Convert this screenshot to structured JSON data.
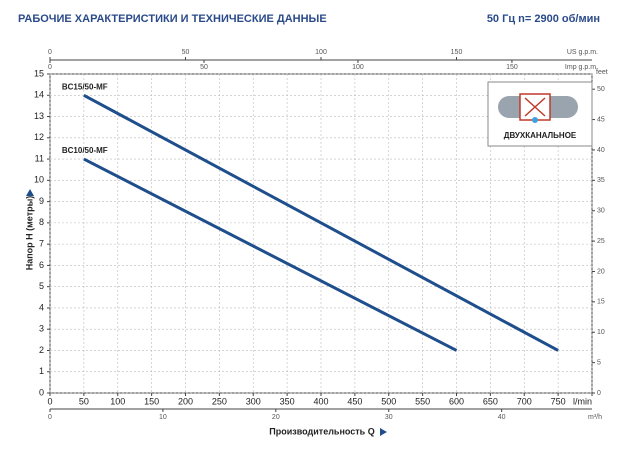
{
  "chart_data": {
    "type": "line",
    "title": "РАБОЧИЕ ХАРАКТЕРИСТИКИ И ТЕХНИЧЕСКИЕ ДАННЫЕ",
    "subtitle": "50 Гц   n= 2900 об/мин",
    "xlabel": "Производительность Q",
    "ylabel": "Напор H (метры)",
    "annotation": "ДВУХКАНАЛЬНОЕ",
    "xlim": [
      0,
      800
    ],
    "xticks": [
      0,
      50,
      100,
      150,
      200,
      250,
      300,
      350,
      400,
      450,
      500,
      550,
      600,
      650,
      700,
      750,
      {
        "value": 800,
        "label": "l/min"
      }
    ],
    "ylim": [
      0,
      15
    ],
    "yticks": [
      0,
      1,
      2,
      3,
      4,
      5,
      6,
      7,
      8,
      9,
      10,
      11,
      12,
      13,
      14,
      15
    ],
    "y2label": "feet",
    "y2lim": [
      0,
      52.5
    ],
    "y2ticks": [
      0,
      5,
      10,
      15,
      20,
      25,
      30,
      35,
      40,
      45,
      50
    ],
    "top_axes": [
      {
        "label": "US g.p.m.",
        "lim": [
          0,
          200
        ],
        "ticks": [
          0,
          50,
          100,
          150
        ]
      },
      {
        "label": "Imp g.p.m.",
        "lim": [
          0,
          176
        ],
        "ticks": [
          0,
          50,
          100,
          150
        ]
      }
    ],
    "bottom_axis": {
      "label": "m³/h",
      "lim": [
        0,
        48
      ],
      "ticks": [
        0,
        10,
        20,
        30,
        40
      ]
    },
    "grid": true,
    "series": [
      {
        "name": "BC15/50-MF",
        "color": "#1f4e8c",
        "x": [
          50,
          750
        ],
        "values": [
          14,
          2
        ]
      },
      {
        "name": "BC10/50-MF",
        "color": "#1f4e8c",
        "x": [
          50,
          600
        ],
        "values": [
          11,
          2
        ]
      }
    ]
  }
}
